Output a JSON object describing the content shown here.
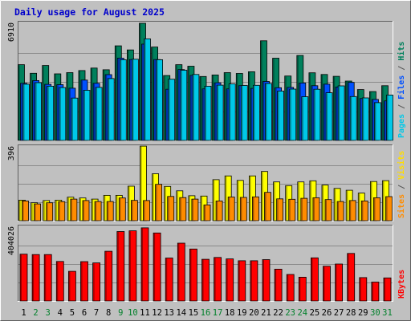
{
  "chart_data": {
    "type": "bar",
    "title": "Daily usage for August 2025",
    "categories": [
      "1",
      "2",
      "3",
      "4",
      "5",
      "6",
      "7",
      "8",
      "9",
      "10",
      "11",
      "12",
      "13",
      "14",
      "15",
      "16",
      "17",
      "18",
      "19",
      "20",
      "21",
      "22",
      "23",
      "24",
      "25",
      "26",
      "27",
      "28",
      "29",
      "30",
      "31"
    ],
    "weekend_days": [
      "2",
      "3",
      "9",
      "10",
      "16",
      "17",
      "23",
      "24",
      "30",
      "31"
    ],
    "panels": [
      {
        "id": "hits-files-pages",
        "max_label": "6910",
        "ylim": [
          0,
          6910
        ],
        "axis_label_parts": [
          {
            "text": "Pages",
            "color": "#00c8e8"
          },
          {
            "text": " / ",
            "color": "#555555"
          },
          {
            "text": "Files",
            "color": "#0050ff"
          },
          {
            "text": " / ",
            "color": "#555555"
          },
          {
            "text": "Hits",
            "color": "#00805c"
          }
        ],
        "series": [
          {
            "name": "Hits",
            "color": "#00805c",
            "values": [
              4470,
              3960,
              4420,
              3930,
              4000,
              4120,
              4270,
              4170,
              5580,
              5340,
              6910,
              5510,
              3830,
              4470,
              4380,
              3770,
              3860,
              4000,
              3950,
              4050,
              5880,
              4850,
              3800,
              5010,
              3990,
              3890,
              3780,
              3500,
              3000,
              2880,
              3230
            ]
          },
          {
            "name": "Files",
            "color": "#0050ff",
            "values": [
              3370,
              3530,
              3310,
              3290,
              3080,
              3560,
              3370,
              3880,
              4850,
              4770,
              5680,
              4770,
              3020,
              4180,
              3840,
              3040,
              3400,
              3040,
              3230,
              3070,
              3480,
              3110,
              3130,
              3390,
              3230,
              3320,
              3150,
              3420,
              2470,
              2420,
              2330
            ]
          },
          {
            "name": "Pages",
            "color": "#00c8e8",
            "values": [
              3320,
              3410,
              3200,
              3120,
              2500,
              2960,
              3130,
              3650,
              4760,
              4790,
              5990,
              4760,
              3610,
              4140,
              3890,
              3200,
              3260,
              3330,
              3240,
              3250,
              3360,
              2910,
              3030,
              2580,
              3020,
              2810,
              3220,
              2590,
              2510,
              2230,
              2680
            ]
          }
        ]
      },
      {
        "id": "visits-sites",
        "max_label": "396",
        "ylim": [
          0,
          396
        ],
        "axis_label_parts": [
          {
            "text": "Sites",
            "color": "#ff8c00"
          },
          {
            "text": " / ",
            "color": "#555555"
          },
          {
            "text": "Visits",
            "color": "#ffdd00"
          }
        ],
        "series": [
          {
            "name": "Visits",
            "color": "#ffff00",
            "values": [
              110,
              96,
              108,
              110,
              126,
              122,
              116,
              136,
              136,
              185,
              400,
              252,
              184,
              160,
              134,
              132,
              220,
              240,
              216,
              240,
              264,
              208,
              188,
              208,
              214,
              191,
              173,
              163,
              148,
              210,
              215
            ]
          },
          {
            "name": "Sites",
            "color": "#ff8c00",
            "values": [
              106,
              90,
              96,
              102,
              116,
              108,
              103,
              103,
              122,
              109,
              108,
              195,
              130,
              124,
              116,
              85,
              106,
              127,
              125,
              128,
              152,
              117,
              115,
              120,
              123,
              113,
              103,
              108,
              106,
              123,
              129
            ]
          }
        ]
      },
      {
        "id": "kbytes",
        "max_label": "404026",
        "ylim": [
          0,
          404026
        ],
        "axis_label_parts": [
          {
            "text": "KBytes",
            "color": "#ff0000"
          }
        ],
        "series": [
          {
            "name": "KBytes",
            "color": "#ff0000",
            "values": [
              256000,
              254000,
              254000,
              216000,
              162000,
              215000,
              208000,
              272000,
              380000,
              384000,
              400000,
              372000,
              235000,
              316000,
              284000,
              228000,
              238000,
              230000,
              220000,
              220000,
              226000,
              174000,
              145000,
              130000,
              236000,
              190000,
              202000,
              260000,
              128000,
              103000,
              126000
            ]
          }
        ]
      }
    ]
  }
}
